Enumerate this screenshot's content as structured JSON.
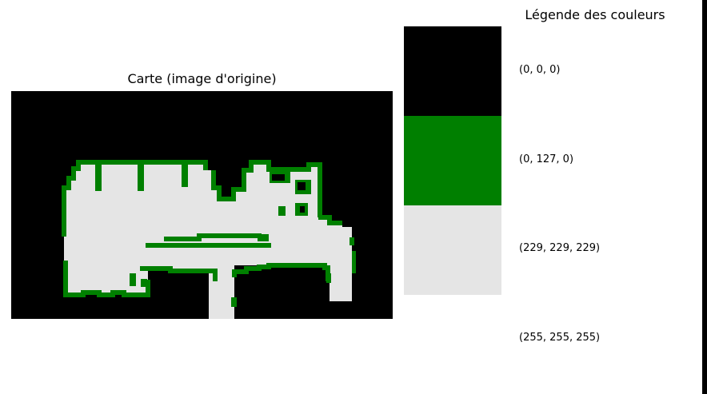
{
  "map": {
    "title": "Carte (image d'origine)",
    "colors": {
      "background": "#000000",
      "wall": "#008000",
      "free": "#e5e5e5"
    }
  },
  "legend": {
    "title": "Légende des couleurs",
    "items": [
      {
        "label": "(0, 0, 0)",
        "color": "#000000"
      },
      {
        "label": "(0, 127, 0)",
        "color": "#007f00"
      },
      {
        "label": "(229, 229, 229)",
        "color": "#e5e5e5"
      },
      {
        "label": "(255, 255, 255)",
        "color": "#ffffff"
      }
    ]
  }
}
